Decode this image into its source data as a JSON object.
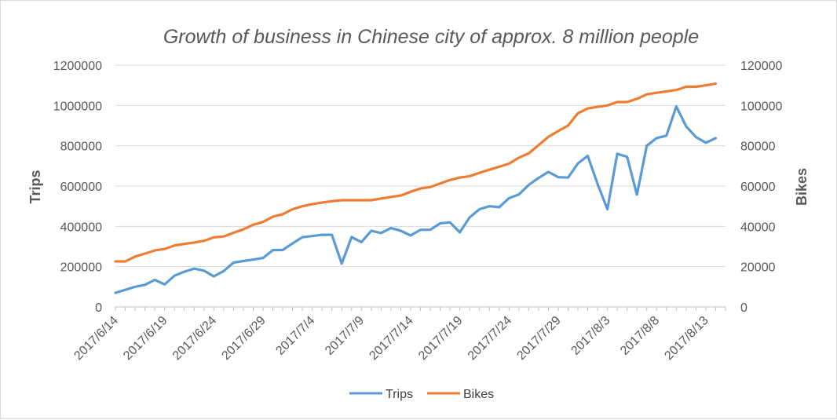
{
  "chart_data": {
    "type": "line",
    "title": "Growth of business in Chinese city of approx. 8 million people",
    "y_left_label": "Trips",
    "y_right_label": "Bikes",
    "y_left_ticks": [
      "0",
      "200000",
      "400000",
      "600000",
      "800000",
      "1000000",
      "1200000"
    ],
    "y_right_ticks": [
      "0",
      "20000",
      "40000",
      "60000",
      "80000",
      "100000",
      "120000"
    ],
    "y_left_range": [
      0,
      1200000
    ],
    "y_right_range": [
      0,
      120000
    ],
    "x_tick_labels": [
      "2017/6/14",
      "2017/6/19",
      "2017/6/24",
      "2017/6/29",
      "2017/7/4",
      "2017/7/9",
      "2017/7/14",
      "2017/7/19",
      "2017/7/24",
      "2017/7/29",
      "2017/8/3",
      "2017/8/8",
      "2017/8/13"
    ],
    "x": [
      "2017/6/14",
      "2017/6/15",
      "2017/6/16",
      "2017/6/17",
      "2017/6/18",
      "2017/6/19",
      "2017/6/20",
      "2017/6/21",
      "2017/6/22",
      "2017/6/23",
      "2017/6/24",
      "2017/6/25",
      "2017/6/26",
      "2017/6/27",
      "2017/6/28",
      "2017/6/29",
      "2017/6/30",
      "2017/7/1",
      "2017/7/2",
      "2017/7/3",
      "2017/7/4",
      "2017/7/5",
      "2017/7/6",
      "2017/7/7",
      "2017/7/8",
      "2017/7/9",
      "2017/7/10",
      "2017/7/11",
      "2017/7/12",
      "2017/7/13",
      "2017/7/14",
      "2017/7/15",
      "2017/7/16",
      "2017/7/17",
      "2017/7/18",
      "2017/7/19",
      "2017/7/20",
      "2017/7/21",
      "2017/7/22",
      "2017/7/23",
      "2017/7/24",
      "2017/7/25",
      "2017/7/26",
      "2017/7/27",
      "2017/7/28",
      "2017/7/29",
      "2017/7/30",
      "2017/7/31",
      "2017/8/1",
      "2017/8/2",
      "2017/8/3",
      "2017/8/4",
      "2017/8/5",
      "2017/8/6",
      "2017/8/7",
      "2017/8/8",
      "2017/8/9",
      "2017/8/10",
      "2017/8/11",
      "2017/8/12",
      "2017/8/13",
      "2017/8/14",
      "2017/8/15"
    ],
    "series": [
      {
        "name": "Trips",
        "axis": "left",
        "color": "#5b9bd5",
        "values": [
          70000,
          85000,
          100000,
          110000,
          135000,
          112000,
          155000,
          175000,
          190000,
          180000,
          152000,
          178000,
          220000,
          228000,
          235000,
          243000,
          282000,
          283000,
          315000,
          346000,
          352000,
          358000,
          358000,
          215000,
          347000,
          322000,
          378000,
          367000,
          392000,
          378000,
          355000,
          383000,
          383000,
          415000,
          420000,
          370000,
          445000,
          485000,
          500000,
          495000,
          540000,
          558000,
          606000,
          640000,
          670000,
          644000,
          642000,
          712000,
          750000,
          610000,
          485000,
          760000,
          745000,
          557000,
          800000,
          838000,
          850000,
          995000,
          896000,
          843000,
          815000,
          838000,
          null
        ]
      },
      {
        "name": "Bikes",
        "axis": "right",
        "color": "#ed7d31",
        "values": [
          22600,
          22600,
          25000,
          26500,
          28000,
          28800,
          30500,
          31300,
          32000,
          32800,
          34500,
          35000,
          36800,
          38500,
          40800,
          42200,
          44800,
          46000,
          48500,
          50000,
          51000,
          51800,
          52500,
          53000,
          53000,
          53000,
          53000,
          53800,
          54600,
          55300,
          57200,
          58800,
          59500,
          61300,
          63000,
          64200,
          64900,
          66600,
          68100,
          69600,
          71100,
          74100,
          76200,
          80300,
          84400,
          87300,
          90000,
          96100,
          98500,
          99300,
          100000,
          101700,
          101700,
          103300,
          105500,
          106300,
          107000,
          107700,
          109300,
          109300,
          110000,
          110800,
          null
        ]
      }
    ],
    "legend": [
      "Trips",
      "Bikes"
    ],
    "legend_position": "bottom",
    "grid": true
  }
}
